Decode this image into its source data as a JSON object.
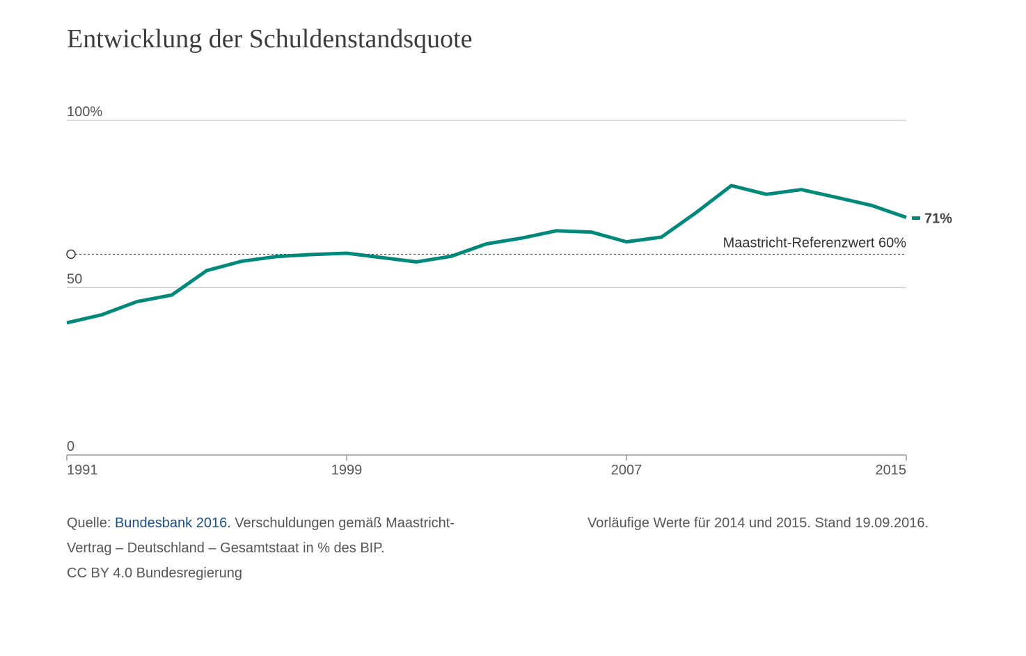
{
  "title": "Entwicklung der Schuldenstandsquote",
  "colors": {
    "line": "#00897b",
    "grid": "#cccccc",
    "axis": "#999999",
    "text": "#555555",
    "link": "#1b4f8a"
  },
  "chart_data": {
    "type": "line",
    "title": "Entwicklung der Schuldenstandsquote",
    "xlabel": "",
    "ylabel": "",
    "x": [
      1991,
      1992,
      1993,
      1994,
      1995,
      1996,
      1997,
      1998,
      1999,
      2000,
      2001,
      2002,
      2003,
      2004,
      2005,
      2006,
      2007,
      2008,
      2009,
      2010,
      2011,
      2012,
      2013,
      2014,
      2015
    ],
    "series": [
      {
        "values": [
          39.5,
          41.9,
          45.8,
          47.8,
          55.1,
          57.9,
          59.3,
          59.9,
          60.3,
          59.0,
          57.7,
          59.4,
          63.1,
          64.8,
          67.0,
          66.6,
          63.7,
          65.1,
          72.5,
          80.5,
          77.9,
          79.3,
          77.0,
          74.6,
          71.0
        ]
      }
    ],
    "end_label": "71%",
    "reference_line": {
      "value": 60,
      "label": "Maastricht-Referenzwert 60%"
    },
    "ylim": [
      0,
      100
    ],
    "xlim": [
      1991,
      2015
    ],
    "y_ticks": [
      {
        "value": 100,
        "label": "100%"
      },
      {
        "value": 50,
        "label": "50"
      },
      {
        "value": 0,
        "label": "0"
      }
    ],
    "x_ticks": [
      {
        "value": 1991,
        "label": "1991"
      },
      {
        "value": 1999,
        "label": "1999"
      },
      {
        "value": 2007,
        "label": "2007"
      },
      {
        "value": 2015,
        "label": "2015"
      }
    ],
    "grid": true,
    "legend": "none"
  },
  "footer": {
    "source_prefix": "Quelle: ",
    "source_link": "Bundesbank 2016.",
    "source_rest_1": " Verschuldungen gemäß Maastricht-",
    "source_rest_2": "Vertrag – Deutschland – Gesamtstaat in % des BIP.",
    "license": "CC BY 4.0 Bundesregierung",
    "note": "Vorläufige Werte für 2014 und 2015. Stand 19.09.2016."
  }
}
